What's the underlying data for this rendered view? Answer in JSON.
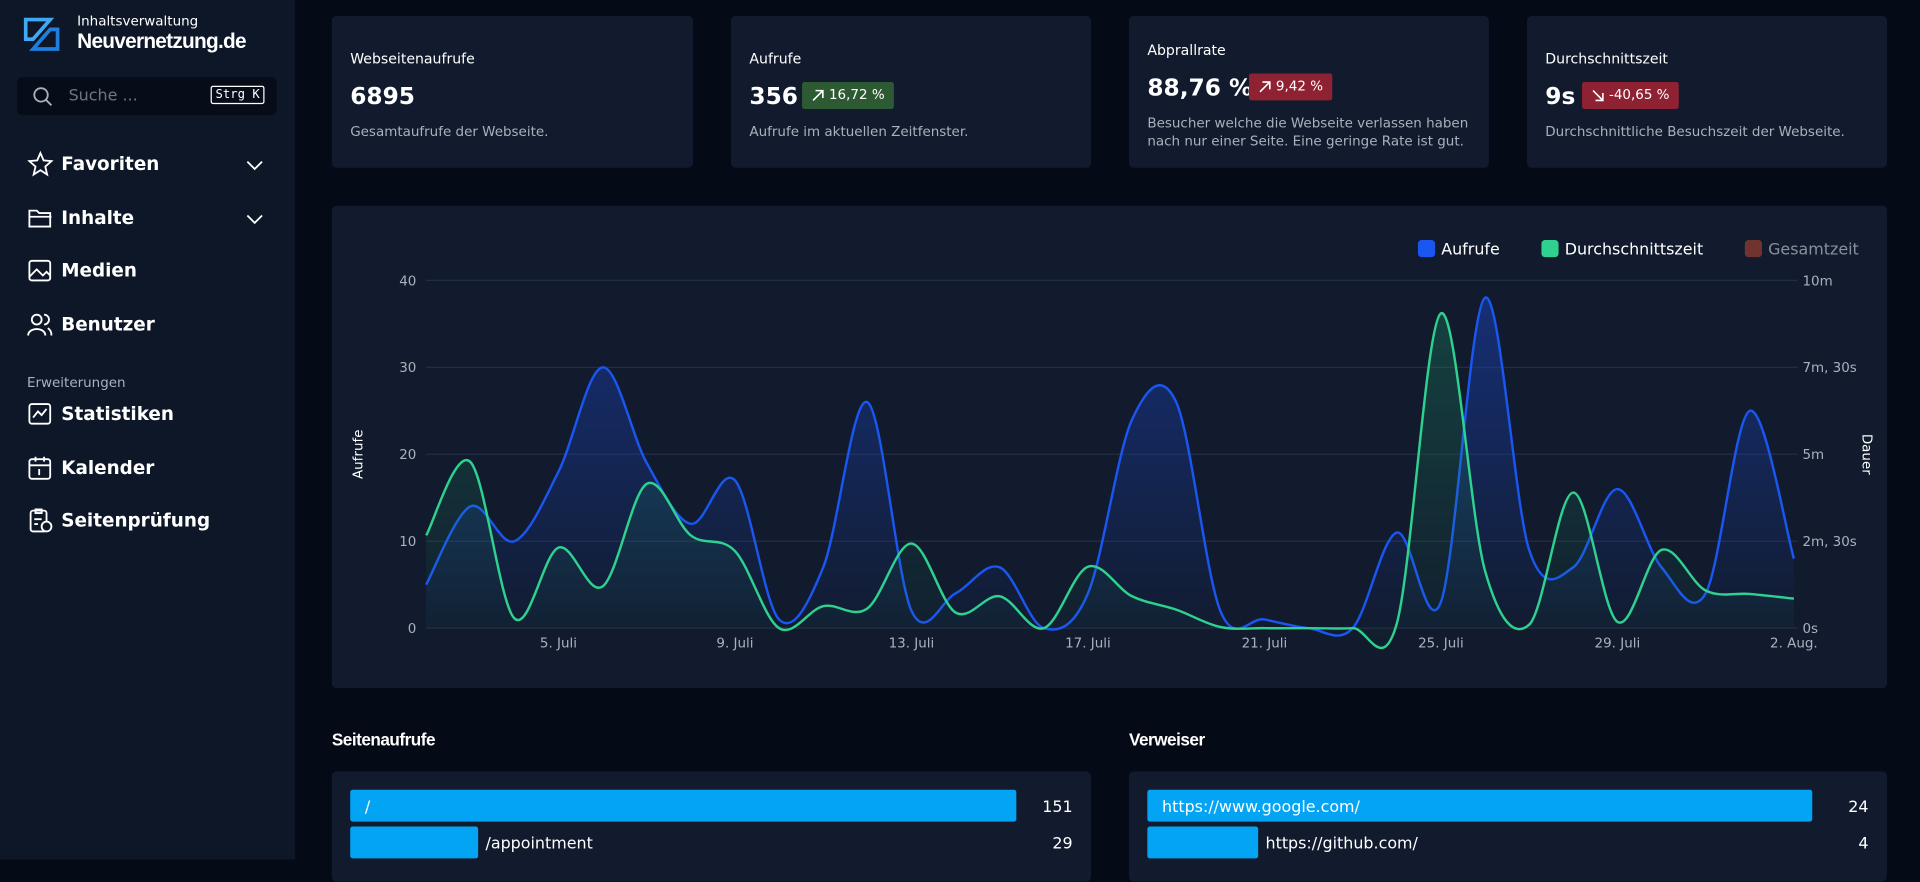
{
  "sidebar": {
    "brand_top": "Inhaltsverwaltung",
    "brand": "Neuvernetzung.de",
    "search_placeholder": "Suche ...",
    "search_shortcut": "Strg K",
    "nav": [
      "Favoriten",
      "Inhalte",
      "Medien",
      "Benutzer"
    ],
    "section": "Erweiterungen",
    "extensions": [
      "Statistiken",
      "Kalender",
      "Seitenprüfung"
    ]
  },
  "stats": [
    {
      "title": "Webseitenaufrufe",
      "value": "6895",
      "description": "Gesamtaufrufe der Webseite."
    },
    {
      "title": "Aufrufe",
      "value": "356",
      "change": "16,72 %",
      "description": "Aufrufe im aktuellen Zeitfenster."
    },
    {
      "title": "Abprallrate",
      "value": "88,76 %",
      "change": "9,42 %",
      "description": "Besucher welche die Webseite verlassen haben nach nur einer Seite. Eine geringe Rate ist gut."
    },
    {
      "title": "Durchschnittszeit",
      "value": "9s",
      "change": "-40,65 %",
      "description": "Durchschnittliche Besuchszeit der Webseite."
    }
  ],
  "chart_data": {
    "type": "line",
    "ylabel": "Aufrufe",
    "y2label": "Dauer",
    "categories": [
      null,
      null,
      null,
      "5. Juli",
      null,
      null,
      null,
      "9. Juli",
      null,
      null,
      null,
      "13. Juli",
      null,
      null,
      null,
      "17. Juli",
      null,
      null,
      null,
      "21. Juli",
      null,
      null,
      null,
      "25. Juli",
      null,
      null,
      null,
      "29. Juli",
      null,
      null,
      null,
      "2. Aug."
    ],
    "series": [
      {
        "name": "Aufrufe",
        "color": "#1a56f0",
        "values": [
          5,
          14,
          10,
          18,
          30,
          19,
          12,
          17,
          1,
          7,
          26,
          2,
          4,
          7,
          0,
          4,
          24,
          26,
          2,
          1,
          0,
          0,
          11,
          3,
          38,
          9,
          7,
          16,
          7,
          4,
          25,
          8
        ]
      },
      {
        "name": "Durchschnittszeit",
        "color": "#2fd18f",
        "axis": "y2",
        "values": [
          160,
          287,
          17,
          139,
          72,
          249,
          160,
          133,
          0,
          38,
          34,
          146,
          27,
          55,
          0,
          106,
          55,
          32,
          2,
          0,
          0,
          0,
          8,
          543,
          99,
          6,
          234,
          11,
          135,
          65,
          59,
          51
        ]
      },
      {
        "name": "Gesamtzeit",
        "color": "#8a3a2e",
        "axis": "y2",
        "hidden": true
      }
    ],
    "ylim": [
      0,
      40
    ],
    "yticks": [
      0,
      10,
      20,
      30,
      40
    ],
    "y2lim": [
      0,
      600
    ],
    "y2ticks": [
      {
        "value": 0,
        "label": "0s"
      },
      {
        "value": 150,
        "label": "2m, 30s"
      },
      {
        "value": 300,
        "label": "5m"
      },
      {
        "value": 450,
        "label": "7m, 30s"
      },
      {
        "value": 600,
        "label": "10m"
      }
    ],
    "grid": true,
    "legend": "top-right"
  },
  "page_views": {
    "title": "Seitenaufrufe",
    "color": "#03a4f4",
    "rows": [
      {
        "label": "/",
        "value": 151
      },
      {
        "label": "/appointment",
        "value": 29
      }
    ]
  },
  "referrers": {
    "title": "Verweiser",
    "color": "#03a4f4",
    "rows": [
      {
        "label": "https://www.google.com/",
        "value": 24
      },
      {
        "label": "https://github.com/",
        "value": 4
      }
    ]
  }
}
